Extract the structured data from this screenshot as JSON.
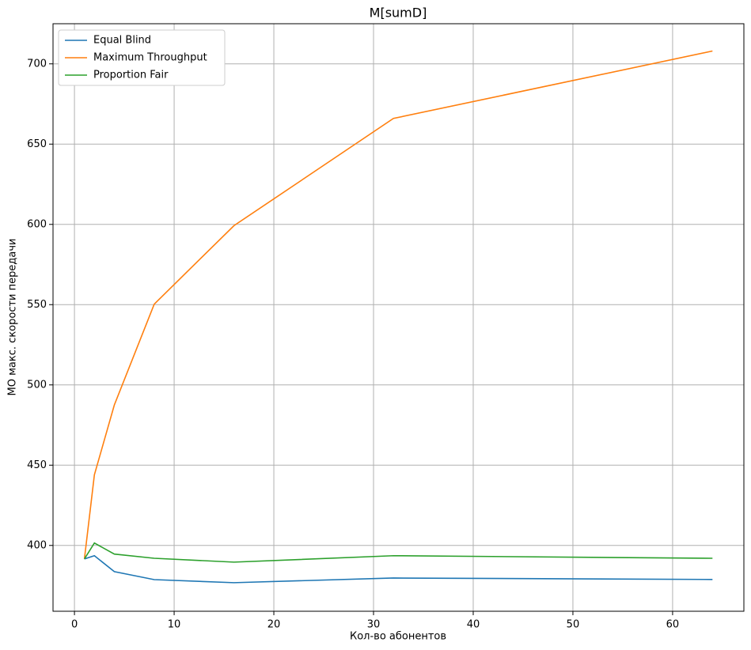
{
  "chart_data": {
    "type": "line",
    "title": "M[sumD]",
    "x_label": "Кол-во абонентов",
    "y_label": "МО макс. скорости передачи",
    "x": [
      1,
      2,
      4,
      8,
      16,
      32,
      64
    ],
    "series": [
      {
        "name": "Equal Blind",
        "color": "#1f77b4",
        "values": [
          391.6,
          393.6,
          383.7,
          378.7,
          376.8,
          379.7,
          378.8
        ]
      },
      {
        "name": "Maximum Throughput",
        "color": "#ff7f0e",
        "values": [
          391.6,
          444,
          487.5,
          550.3,
          599.2,
          666,
          708
        ]
      },
      {
        "name": "Proportion Fair",
        "color": "#2ca02c",
        "values": [
          391.6,
          401.5,
          394.6,
          392,
          389.6,
          393.6,
          392
        ]
      }
    ],
    "xlim": [
      -2.15,
      67.15
    ],
    "xticks": [
      0,
      10,
      20,
      30,
      40,
      50,
      60
    ],
    "ylim": [
      359,
      725
    ],
    "yticks": [
      400,
      450,
      500,
      550,
      600,
      650,
      700
    ],
    "grid": true,
    "legend": "upper-left"
  }
}
